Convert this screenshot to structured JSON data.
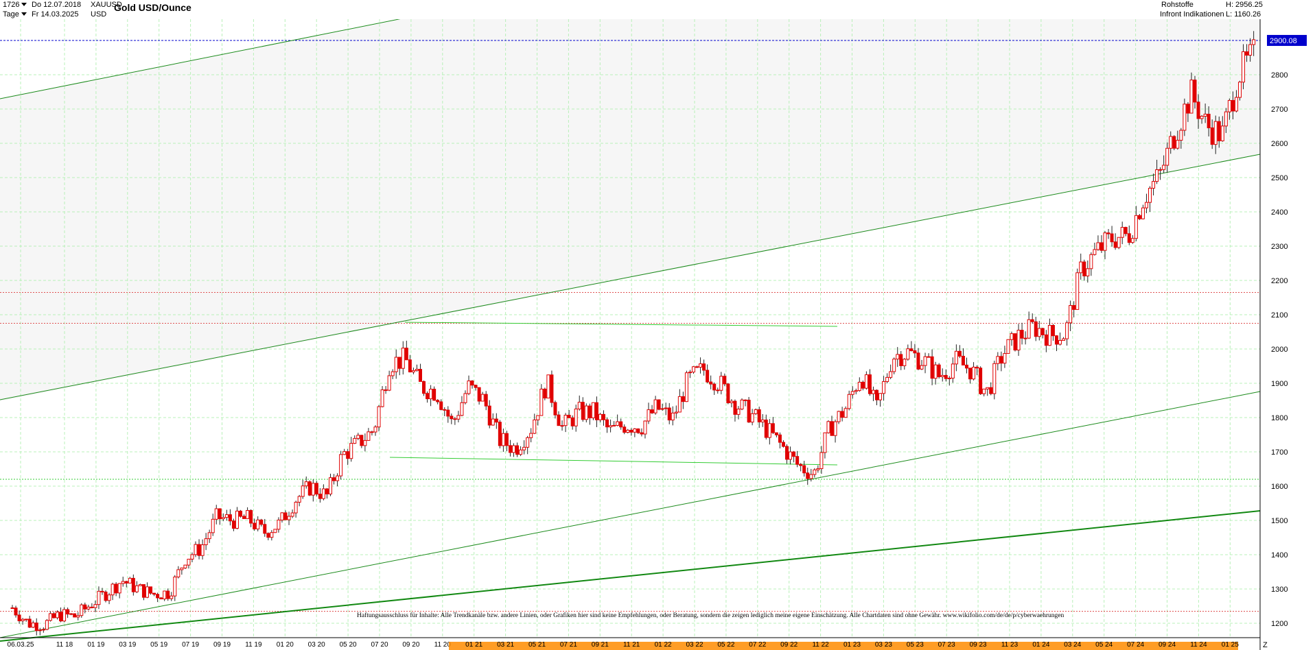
{
  "header": {
    "period_count": "1726",
    "start_date": "Do 12.07.2018",
    "interval": "Tage",
    "end_date": "Fr 14.03.2025",
    "symbol": "XAUUSD",
    "currency": "USD",
    "title": "Gold USD/Ounce",
    "category": "Rohstoffe",
    "source": "Infront Indikationen",
    "high_label": "H: 2956.25",
    "low_label": "L: 1160.26"
  },
  "price_tag": {
    "value": "2900.08",
    "color": "#0000cc"
  },
  "disclaimer": "Haftungsausschluss für Inhalte: Alle Trendkanäle bzw. andere Linien, oder Grafiken hier sind keine Empfehlungen, oder Beratung, sondern die zeigen lediglich meine eigene Einschätzung. Alle Chartdaten sind ohne Gewähr.  www.wikifolio.com/de/de/p/cyberwaehrungen",
  "corner_label": "Z",
  "colors": {
    "candles": "#e00000",
    "trend_lines": "#1a8a1a",
    "range_lines": "#33cc33",
    "grid": "#b8f0b8",
    "support_red": "#e05050",
    "price_line": "#0000cc",
    "orange_axis": "#ff8c00"
  },
  "chart_data": {
    "type": "candlestick",
    "title": "Gold USD/Ounce",
    "y_ticks": [
      1200,
      1300,
      1400,
      1500,
      1600,
      1700,
      1800,
      1900,
      2000,
      2100,
      2200,
      2300,
      2400,
      2500,
      2600,
      2700,
      2800
    ],
    "ylim": [
      1160,
      2960
    ],
    "x_tick_labels": [
      "06.03.25",
      "11 18",
      "01 19",
      "03 19",
      "05 19",
      "07 19",
      "09 19",
      "11 19",
      "01 20",
      "03 20",
      "05 20",
      "07 20",
      "09 20",
      "11 20",
      "01 21",
      "03 21",
      "05 21",
      "07 21",
      "09 21",
      "11 21",
      "01 22",
      "03 22",
      "05 22",
      "07 22",
      "09 22",
      "11 22",
      "01 23",
      "03 23",
      "05 23",
      "07 23",
      "09 23",
      "11 23",
      "01 24",
      "03 24",
      "05 24",
      "07 24",
      "09 24",
      "11 24",
      "01 25"
    ],
    "grid": true,
    "price_series": [
      [
        "2018-07",
        1245
      ],
      [
        "2018-08",
        1200
      ],
      [
        "2018-09",
        1195
      ],
      [
        "2018-10",
        1225
      ],
      [
        "2018-11",
        1220
      ],
      [
        "2018-12",
        1255
      ],
      [
        "2019-01",
        1290
      ],
      [
        "2019-02",
        1325
      ],
      [
        "2019-03",
        1300
      ],
      [
        "2019-04",
        1285
      ],
      [
        "2019-05",
        1290
      ],
      [
        "2019-06",
        1390
      ],
      [
        "2019-07",
        1420
      ],
      [
        "2019-08",
        1510
      ],
      [
        "2019-09",
        1500
      ],
      [
        "2019-10",
        1505
      ],
      [
        "2019-11",
        1465
      ],
      [
        "2019-12",
        1490
      ],
      [
        "2020-01",
        1560
      ],
      [
        "2020-02",
        1600
      ],
      [
        "2020-03",
        1570
      ],
      [
        "2020-04",
        1690
      ],
      [
        "2020-05",
        1725
      ],
      [
        "2020-06",
        1765
      ],
      [
        "2020-07",
        1960
      ],
      [
        "2020-08",
        1970
      ],
      [
        "2020-09",
        1890
      ],
      [
        "2020-10",
        1875
      ],
      [
        "2020-11",
        1780
      ],
      [
        "2020-12",
        1890
      ],
      [
        "2021-01",
        1850
      ],
      [
        "2021-02",
        1735
      ],
      [
        "2021-03",
        1710
      ],
      [
        "2021-04",
        1770
      ],
      [
        "2021-05",
        1905
      ],
      [
        "2021-06",
        1770
      ],
      [
        "2021-07",
        1815
      ],
      [
        "2021-08",
        1815
      ],
      [
        "2021-09",
        1760
      ],
      [
        "2021-10",
        1780
      ],
      [
        "2021-11",
        1775
      ],
      [
        "2021-12",
        1830
      ],
      [
        "2022-01",
        1795
      ],
      [
        "2022-02",
        1910
      ],
      [
        "2022-03",
        1940
      ],
      [
        "2022-04",
        1900
      ],
      [
        "2022-05",
        1840
      ],
      [
        "2022-06",
        1810
      ],
      [
        "2022-07",
        1765
      ],
      [
        "2022-08",
        1715
      ],
      [
        "2022-09",
        1660
      ],
      [
        "2022-10",
        1635
      ],
      [
        "2022-11",
        1770
      ],
      [
        "2022-12",
        1825
      ],
      [
        "2023-01",
        1930
      ],
      [
        "2023-02",
        1825
      ],
      [
        "2023-03",
        1980
      ],
      [
        "2023-04",
        1990
      ],
      [
        "2023-05",
        1965
      ],
      [
        "2023-06",
        1920
      ],
      [
        "2023-07",
        1965
      ],
      [
        "2023-08",
        1940
      ],
      [
        "2023-09",
        1870
      ],
      [
        "2023-10",
        1985
      ],
      [
        "2023-11",
        2035
      ],
      [
        "2023-12",
        2065
      ],
      [
        "2024-01",
        2040
      ],
      [
        "2024-02",
        2045
      ],
      [
        "2024-03",
        2230
      ],
      [
        "2024-04",
        2285
      ],
      [
        "2024-05",
        2325
      ],
      [
        "2024-06",
        2330
      ],
      [
        "2024-07",
        2445
      ],
      [
        "2024-08",
        2505
      ],
      [
        "2024-09",
        2635
      ],
      [
        "2024-10",
        2745
      ],
      [
        "2024-11",
        2650
      ],
      [
        "2024-12",
        2625
      ],
      [
        "2025-01",
        2800
      ],
      [
        "2025-02",
        2860
      ],
      [
        "2025-03",
        2900
      ]
    ],
    "horizontal_levels": [
      1235,
      1620,
      2075,
      2165,
      2900
    ]
  }
}
